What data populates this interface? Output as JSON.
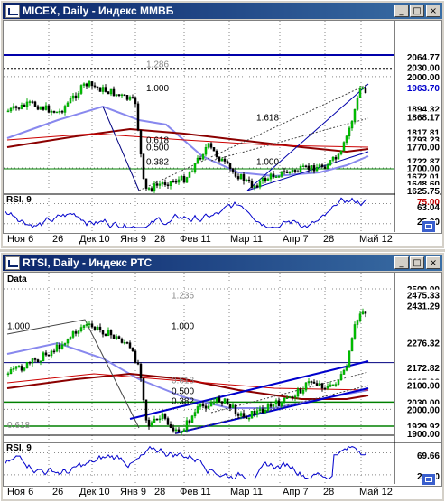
{
  "windows": [
    {
      "id": "micex",
      "title": "MICEX, Daily - Индекс ММВБ",
      "price_labels": [
        {
          "value": 2064.77,
          "text": "2064.77",
          "bg": "#ffffff",
          "fg": "#000000"
        },
        {
          "value": 2030.0,
          "text": "2030.00",
          "bg": "#ffffff",
          "fg": "#000000"
        },
        {
          "value": 2000,
          "text": "2000.00",
          "bg": "#ffffff",
          "fg": "#000000"
        },
        {
          "value": 1963.7,
          "text": "1963.70",
          "bg": "#ffffff",
          "fg": "#0000cc"
        },
        {
          "value": 1894.32,
          "text": "1894.32",
          "bg": "#ffffff",
          "fg": "#000000"
        },
        {
          "value": 1868.17,
          "text": "1868.17",
          "bg": "#ffffff",
          "fg": "#000000"
        },
        {
          "value": 1817.81,
          "text": "1817.81",
          "bg": "#ffffff",
          "fg": "#000000"
        },
        {
          "value": 1793.23,
          "text": "1793.23",
          "bg": "#ffffff",
          "fg": "#000000"
        },
        {
          "value": 1770.0,
          "text": "1770.00",
          "bg": "#ffffff",
          "fg": "#000000"
        },
        {
          "value": 1722.87,
          "text": "1722.87",
          "bg": "#ffffff",
          "fg": "#000000"
        },
        {
          "value": 1700,
          "text": "1700.00",
          "bg": "#ffffff",
          "fg": "#000000"
        },
        {
          "value": 1672.01,
          "text": "1672.01",
          "bg": "#ffffff",
          "fg": "#000000"
        },
        {
          "value": 1648.6,
          "text": "1648.60",
          "bg": "#ffffff",
          "fg": "#000000"
        },
        {
          "value": 1625.75,
          "text": "1625.75",
          "bg": "#ffffff",
          "fg": "#000000"
        }
      ],
      "fib_labels": [
        "1.286",
        "1.000",
        "0.618",
        "0.500",
        "0.382",
        "1.618",
        "1.000"
      ],
      "rsi_label": "RSI, 9",
      "rsi_values": [
        {
          "text": "75.00",
          "fg": "#c00000"
        },
        {
          "text": "63.04",
          "fg": "#000000"
        },
        {
          "text": "25.00",
          "fg": "#000000"
        }
      ],
      "x_labels": [
        "Ноя 6",
        "26",
        "Дек 10",
        "Янв 9",
        "28",
        "Фев 11",
        "Мар 11",
        "Апр 7",
        "28",
        "Май 12"
      ]
    },
    {
      "id": "rtsi",
      "title": "RTSI, Daily - Индекс РТС",
      "data_flag": "Data",
      "price_labels": [
        {
          "value": 2500,
          "text": "2500.00",
          "bg": "#ffffff",
          "fg": "#000000"
        },
        {
          "value": 2475.33,
          "text": "2475.33",
          "bg": "#ffffff",
          "fg": "#000000"
        },
        {
          "value": 2431.29,
          "text": "2431.29",
          "bg": "#ffffff",
          "fg": "#000000"
        },
        {
          "value": 2276.32,
          "text": "2276.32",
          "bg": "#ffffff",
          "fg": "#000000"
        },
        {
          "value": 2172.82,
          "text": "2172.82",
          "bg": "#ffffff",
          "fg": "#000000"
        },
        {
          "value": 2115.06,
          "text": "2115.06",
          "bg": "#ffffff",
          "fg": "#000000"
        },
        {
          "value": 2100,
          "text": "2100.00",
          "bg": "#ffffff",
          "fg": "#000000"
        },
        {
          "value": 2030,
          "text": "2030.00",
          "bg": "#ffffff",
          "fg": "#000000"
        },
        {
          "value": 2000,
          "text": "2000.00",
          "bg": "#ffffff",
          "fg": "#000000"
        },
        {
          "value": 1929.92,
          "text": "1929.92",
          "bg": "#ffffff",
          "fg": "#000000"
        },
        {
          "value": 1900,
          "text": "1900.00",
          "bg": "#ffffff",
          "fg": "#000000"
        }
      ],
      "fib_labels": [
        "1.236",
        "1.000",
        "1.000",
        "0.618",
        "0.500",
        "0.382",
        "0.618"
      ],
      "rsi_label": "RSI, 9",
      "rsi_values": [
        {
          "text": "69.66",
          "fg": "#000000"
        },
        {
          "text": "25.00",
          "fg": "#000000"
        }
      ],
      "x_labels": [
        "Ноя 6",
        "26",
        "Дек 10",
        "Янв 9",
        "28",
        "Фев 11",
        "Мар 11",
        "Апр 7",
        "28",
        "Май 12"
      ]
    }
  ],
  "window_buttons": {
    "minimize": "_",
    "maximize": "□",
    "close": "×"
  },
  "colors": {
    "title_bar": "#0a246a",
    "trend_blue": "#0000aa",
    "ma_red": "#8b0000",
    "ma_lightblue": "#8888ee",
    "support_green": "#008000",
    "candle_up": "#00aa00",
    "candle_down": "#000000"
  }
}
